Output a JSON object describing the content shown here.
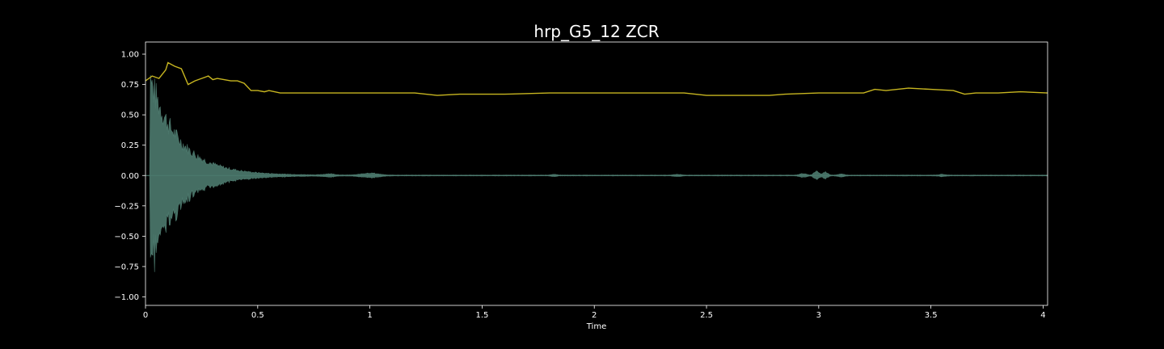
{
  "chart_data": {
    "type": "line",
    "title": "hrp_G5_12 ZCR",
    "xlabel": "Time",
    "ylabel": "",
    "xlim": [
      0,
      4.02
    ],
    "ylim": [
      -1.07,
      1.1
    ],
    "x_ticks": [
      0,
      0.5,
      1,
      1.5,
      2,
      2.5,
      3,
      3.5,
      4
    ],
    "x_tick_labels": [
      "0",
      "0.5",
      "1",
      "1.5",
      "2",
      "2.5",
      "3",
      "3.5",
      "4"
    ],
    "y_ticks": [
      1.0,
      0.75,
      0.5,
      0.25,
      0.0,
      -0.25,
      -0.5,
      -0.75,
      -1.0
    ],
    "y_tick_labels": [
      "1.00",
      "0.75",
      "0.50",
      "0.25",
      "0.00",
      "−0.25",
      "−0.50",
      "−0.75",
      "−1.00"
    ],
    "grid": false,
    "colors": {
      "background": "#000000",
      "zcr_line": "#c8b620",
      "waveform": "#4d7a6e",
      "axes": "#ffffff"
    },
    "series": [
      {
        "kind": "zcr-line",
        "x": [
          0.0,
          0.03,
          0.06,
          0.09,
          0.1,
          0.13,
          0.16,
          0.19,
          0.22,
          0.25,
          0.28,
          0.3,
          0.32,
          0.35,
          0.38,
          0.41,
          0.44,
          0.47,
          0.5,
          0.53,
          0.55,
          0.6,
          0.65,
          0.7,
          1.0,
          1.2,
          1.3,
          1.4,
          1.6,
          1.8,
          2.0,
          2.2,
          2.4,
          2.5,
          2.78,
          2.85,
          3.0,
          3.1,
          3.2,
          3.25,
          3.3,
          3.35,
          3.4,
          3.5,
          3.6,
          3.65,
          3.7,
          3.8,
          3.9,
          4.02
        ],
        "y": [
          0.78,
          0.82,
          0.8,
          0.87,
          0.93,
          0.9,
          0.88,
          0.75,
          0.78,
          0.8,
          0.82,
          0.79,
          0.8,
          0.79,
          0.78,
          0.78,
          0.76,
          0.7,
          0.7,
          0.69,
          0.7,
          0.68,
          0.68,
          0.68,
          0.68,
          0.68,
          0.66,
          0.67,
          0.67,
          0.68,
          0.68,
          0.68,
          0.68,
          0.66,
          0.66,
          0.67,
          0.68,
          0.68,
          0.68,
          0.71,
          0.7,
          0.71,
          0.72,
          0.71,
          0.7,
          0.67,
          0.68,
          0.68,
          0.69,
          0.68
        ]
      }
    ]
  }
}
